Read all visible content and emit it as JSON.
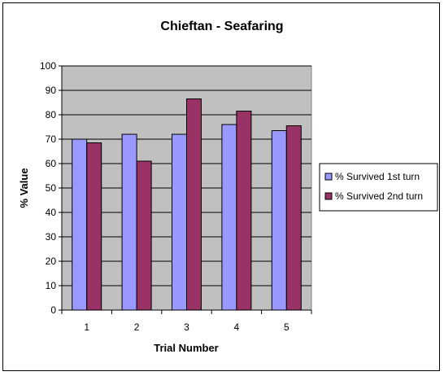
{
  "chart_data": {
    "type": "bar",
    "title": "Chieftan - Seafaring",
    "xlabel": "Trial Number",
    "ylabel": "% Value",
    "categories": [
      "1",
      "2",
      "3",
      "4",
      "5"
    ],
    "series": [
      {
        "name": "% Survived 1st turn",
        "color": "#9999ff",
        "values": [
          70,
          72,
          72,
          76,
          73.5
        ]
      },
      {
        "name": "% Survived 2nd turn",
        "color": "#993366",
        "values": [
          68.5,
          61,
          86.5,
          81.5,
          75.5
        ]
      }
    ],
    "ylim": [
      0,
      100
    ],
    "yticks": [
      0,
      10,
      20,
      30,
      40,
      50,
      60,
      70,
      80,
      90,
      100
    ],
    "grid": true,
    "plot_background": "#c0c0c0",
    "legend": "right"
  }
}
